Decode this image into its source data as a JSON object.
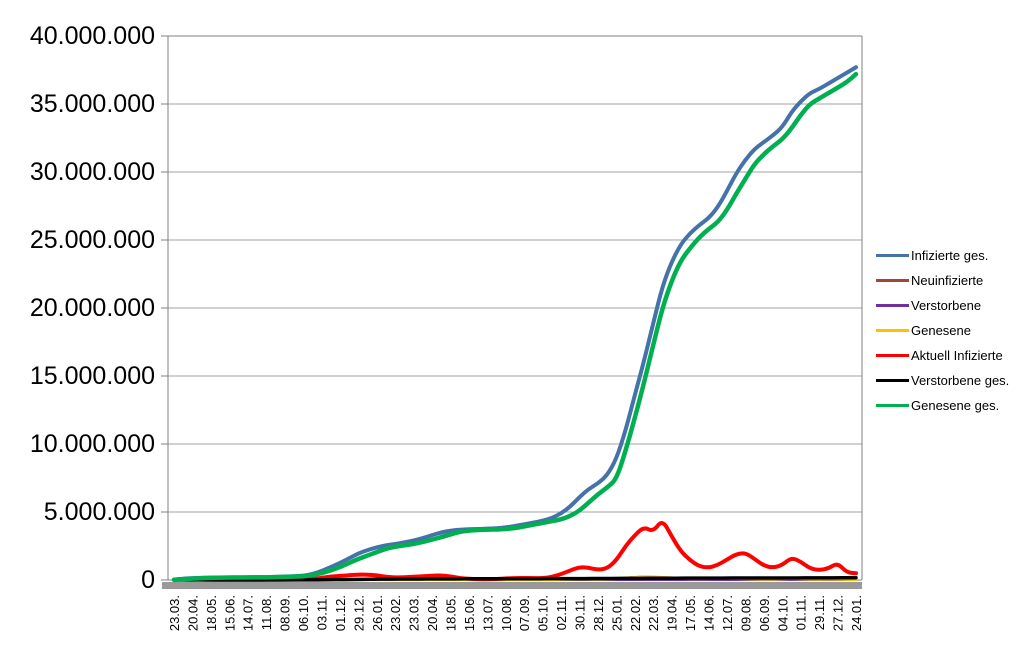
{
  "chart_data": {
    "type": "line",
    "title": "",
    "values_unit": "millions",
    "x_axis": {
      "labels": [
        "23.03.",
        "20.04.",
        "18.05.",
        "15.06.",
        "14.07.",
        "11.08.",
        "08.09.",
        "06.10.",
        "03.11.",
        "01.12.",
        "29.12.",
        "26.01.",
        "23.02.",
        "23.03.",
        "20.04.",
        "18.05.",
        "15.06.",
        "13.07.",
        "10.08.",
        "07.09.",
        "05.10.",
        "02.11.",
        "30.11.",
        "28.12.",
        "25.01.",
        "22.02.",
        "22.03.",
        "19.04.",
        "17.05.",
        "14.06.",
        "12.07.",
        "09.08.",
        "06.09.",
        "04.10.",
        "01.11.",
        "29.11.",
        "27.12.",
        "24.01."
      ]
    },
    "y_axis": {
      "tick_labels": [
        "40.000.000",
        "35.000.000",
        "30.000.000",
        "25.000.000",
        "20.000.000",
        "15.000.000",
        "10.000.000",
        "5.000.000",
        "0"
      ],
      "min": 0,
      "max": 40000000,
      "grid_interval": 5000000,
      "grid_on": true
    },
    "legend_position": "right",
    "series": [
      {
        "name": "Infizierte ges.",
        "color": "#4472A9",
        "width": 4,
        "values": [
          0.03,
          0.1,
          0.14,
          0.16,
          0.175,
          0.18,
          0.19,
          0.195,
          0.2,
          0.206,
          0.215,
          0.232,
          0.25,
          0.275,
          0.31,
          0.43,
          0.65,
          0.95,
          1.25,
          1.6,
          1.95,
          2.2,
          2.4,
          2.55,
          2.65,
          2.76,
          2.9,
          3.08,
          3.3,
          3.5,
          3.63,
          3.7,
          3.73,
          3.75,
          3.77,
          3.8,
          3.87,
          3.97,
          4.1,
          4.22,
          4.35,
          4.55,
          4.9,
          5.4,
          6.1,
          6.7,
          7.1,
          7.7,
          8.9,
          11.0,
          13.6,
          16.1,
          18.9,
          21.6,
          23.4,
          24.7,
          25.5,
          26.1,
          26.6,
          27.4,
          28.6,
          29.9,
          30.9,
          31.7,
          32.2,
          32.7,
          33.3,
          34.4,
          35.2,
          35.8,
          36.1,
          36.5,
          36.9,
          37.3,
          37.7
        ]
      },
      {
        "name": "Neuinfizierte",
        "color": "#A5443C",
        "width": 2,
        "values": [
          0.004,
          0.006,
          0.003,
          0.002,
          0.001,
          0.001,
          0.001,
          0.001,
          0.001,
          0.001,
          0.001,
          0.001,
          0.002,
          0.002,
          0.003,
          0.006,
          0.012,
          0.018,
          0.02,
          0.022,
          0.025,
          0.018,
          0.012,
          0.008,
          0.008,
          0.01,
          0.013,
          0.016,
          0.02,
          0.018,
          0.012,
          0.007,
          0.004,
          0.002,
          0.002,
          0.003,
          0.008,
          0.01,
          0.008,
          0.007,
          0.008,
          0.015,
          0.03,
          0.05,
          0.055,
          0.045,
          0.035,
          0.06,
          0.1,
          0.18,
          0.22,
          0.25,
          0.24,
          0.2,
          0.15,
          0.1,
          0.07,
          0.08,
          0.09,
          0.1,
          0.12,
          0.09,
          0.06,
          0.05,
          0.04,
          0.05,
          0.08,
          0.09,
          0.05,
          0.04,
          0.04,
          0.05,
          0.04,
          0.02,
          0.015
        ]
      },
      {
        "name": "Verstorbene",
        "color": "#7030A0",
        "width": 2,
        "values": [
          0.0003,
          0.0015,
          0.002,
          0.0015,
          0.001,
          0.0005,
          0.0003,
          0.0002,
          0.0002,
          0.0002,
          0.0002,
          0.0002,
          0.0003,
          0.0003,
          0.0004,
          0.0005,
          0.001,
          0.002,
          0.003,
          0.004,
          0.005,
          0.006,
          0.005,
          0.004,
          0.003,
          0.002,
          0.002,
          0.002,
          0.002,
          0.002,
          0.002,
          0.001,
          0.001,
          0.0005,
          0.0004,
          0.0004,
          0.0005,
          0.0006,
          0.0007,
          0.0008,
          0.001,
          0.001,
          0.002,
          0.002,
          0.003,
          0.003,
          0.003,
          0.002,
          0.002,
          0.002,
          0.002,
          0.002,
          0.002,
          0.002,
          0.002,
          0.001,
          0.001,
          0.001,
          0.001,
          0.001,
          0.001,
          0.001,
          0.001,
          0.001,
          0.001,
          0.001,
          0.001,
          0.001,
          0.001,
          0.001,
          0.001,
          0.001,
          0.001,
          0.001,
          0.001
        ]
      },
      {
        "name": "Genesene",
        "color": "#FFC000",
        "width": 2.5,
        "values": [
          0.002,
          0.004,
          0.004,
          0.003,
          0.002,
          0.001,
          0.001,
          0.001,
          0.001,
          0.001,
          0.001,
          0.001,
          0.002,
          0.002,
          0.002,
          0.004,
          0.008,
          0.014,
          0.018,
          0.02,
          0.022,
          0.02,
          0.014,
          0.01,
          0.008,
          0.009,
          0.012,
          0.014,
          0.018,
          0.019,
          0.015,
          0.009,
          0.005,
          0.003,
          0.002,
          0.003,
          0.006,
          0.009,
          0.009,
          0.007,
          0.007,
          0.012,
          0.024,
          0.042,
          0.05,
          0.048,
          0.04,
          0.05,
          0.08,
          0.15,
          0.2,
          0.23,
          0.235,
          0.21,
          0.17,
          0.12,
          0.08,
          0.08,
          0.085,
          0.095,
          0.11,
          0.1,
          0.07,
          0.055,
          0.045,
          0.045,
          0.07,
          0.085,
          0.06,
          0.045,
          0.04,
          0.045,
          0.045,
          0.025,
          0.015
        ]
      },
      {
        "name": "Aktuell Infizierte",
        "color": "#FF0000",
        "width": 4,
        "values": [
          0.02,
          0.06,
          0.045,
          0.025,
          0.015,
          0.01,
          0.009,
          0.008,
          0.009,
          0.011,
          0.014,
          0.018,
          0.022,
          0.028,
          0.04,
          0.08,
          0.15,
          0.25,
          0.3,
          0.35,
          0.4,
          0.39,
          0.34,
          0.24,
          0.19,
          0.2,
          0.24,
          0.27,
          0.32,
          0.34,
          0.27,
          0.14,
          0.09,
          0.06,
          0.055,
          0.07,
          0.11,
          0.15,
          0.15,
          0.14,
          0.14,
          0.22,
          0.43,
          0.7,
          0.95,
          0.9,
          0.75,
          0.85,
          1.45,
          2.5,
          3.3,
          3.9,
          3.55,
          4.45,
          3.2,
          2.1,
          1.45,
          1.0,
          0.9,
          1.1,
          1.5,
          1.9,
          2.0,
          1.55,
          1.05,
          0.9,
          1.1,
          1.65,
          1.35,
          0.85,
          0.72,
          0.85,
          1.25,
          0.55,
          0.5
        ]
      },
      {
        "name": "Verstorbene ges.",
        "color": "#000000",
        "width": 3.5,
        "values": [
          0.001,
          0.002,
          0.004,
          0.006,
          0.008,
          0.008,
          0.009,
          0.009,
          0.009,
          0.009,
          0.009,
          0.009,
          0.009,
          0.01,
          0.01,
          0.012,
          0.015,
          0.02,
          0.027,
          0.035,
          0.043,
          0.052,
          0.06,
          0.066,
          0.07,
          0.073,
          0.076,
          0.079,
          0.081,
          0.084,
          0.086,
          0.088,
          0.09,
          0.091,
          0.092,
          0.092,
          0.093,
          0.094,
          0.095,
          0.096,
          0.097,
          0.098,
          0.1,
          0.102,
          0.104,
          0.107,
          0.109,
          0.112,
          0.115,
          0.118,
          0.121,
          0.124,
          0.127,
          0.13,
          0.132,
          0.134,
          0.136,
          0.138,
          0.139,
          0.14,
          0.142,
          0.143,
          0.145,
          0.146,
          0.147,
          0.148,
          0.149,
          0.15,
          0.152,
          0.154,
          0.156,
          0.158,
          0.16,
          0.163,
          0.165
        ]
      },
      {
        "name": "Genesene ges.",
        "color": "#00B050",
        "width": 4.5,
        "values": [
          0.01,
          0.045,
          0.095,
          0.135,
          0.158,
          0.168,
          0.178,
          0.185,
          0.19,
          0.195,
          0.2,
          0.213,
          0.228,
          0.247,
          0.27,
          0.35,
          0.5,
          0.7,
          0.95,
          1.25,
          1.55,
          1.8,
          2.05,
          2.3,
          2.45,
          2.55,
          2.65,
          2.8,
          2.97,
          3.15,
          3.35,
          3.55,
          3.63,
          3.68,
          3.7,
          3.72,
          3.75,
          3.82,
          3.94,
          4.07,
          4.2,
          4.32,
          4.46,
          4.7,
          5.1,
          5.7,
          6.3,
          6.8,
          7.4,
          9.5,
          11.9,
          14.5,
          17.3,
          20.0,
          22.0,
          23.5,
          24.4,
          25.2,
          25.8,
          26.3,
          27.2,
          28.4,
          29.5,
          30.6,
          31.3,
          31.9,
          32.4,
          33.2,
          34.2,
          35.0,
          35.4,
          35.8,
          36.2,
          36.6,
          37.2
        ]
      }
    ]
  },
  "style_colors": {
    "gridline": "#A3A3A3",
    "axis": "#808080",
    "baseline_band": "#999999",
    "background": "#FFFFFF"
  }
}
